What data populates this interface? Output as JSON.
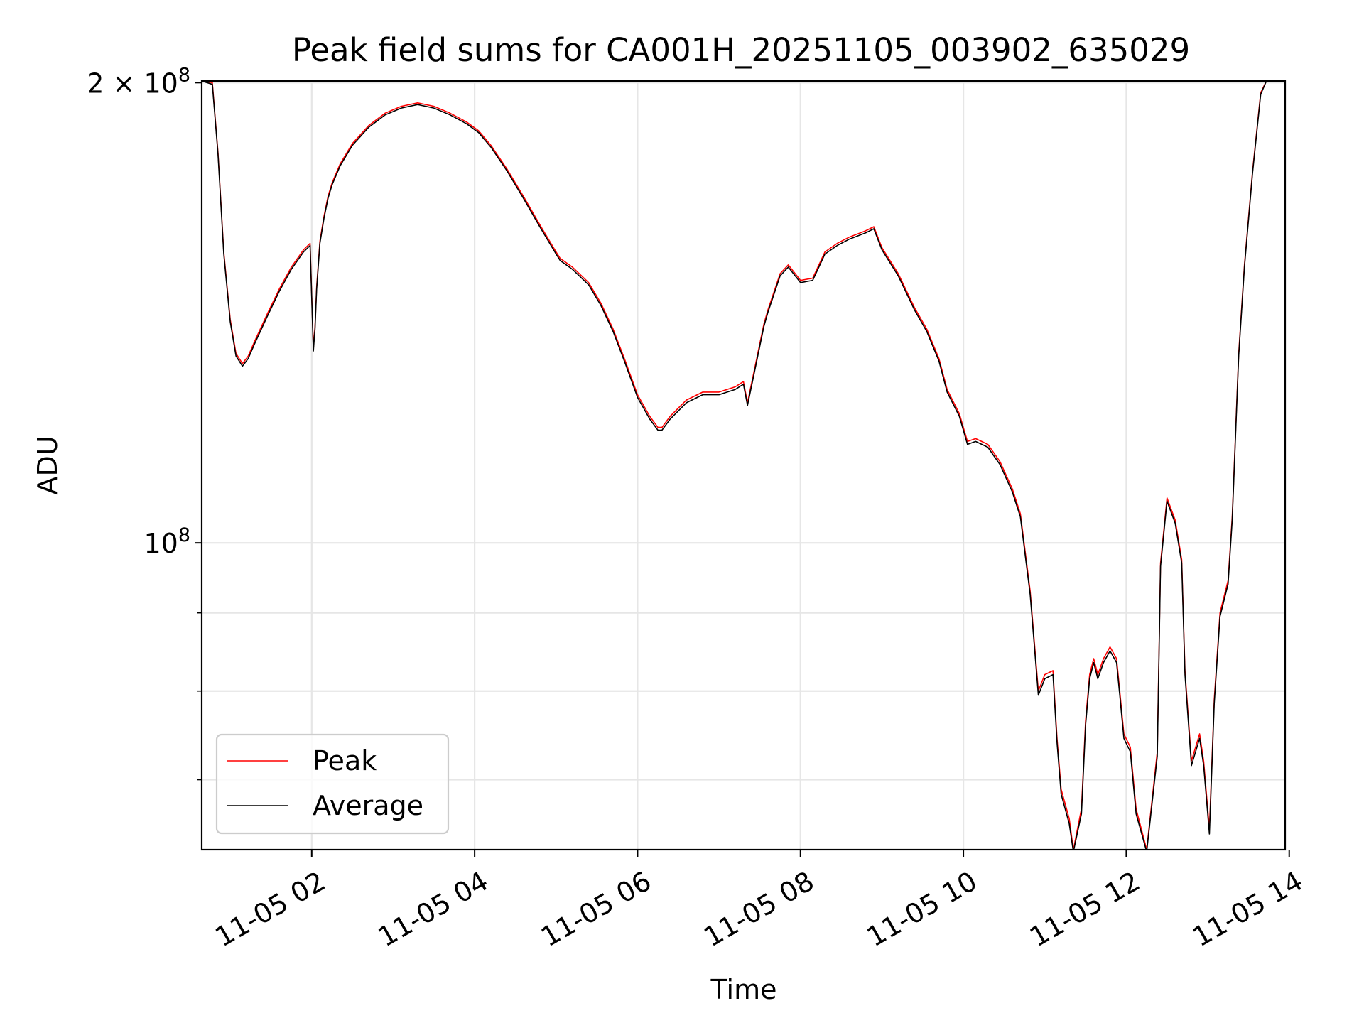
{
  "chart_data": {
    "type": "line",
    "title": "Peak field sums for CA001H_20251105_003902_635029",
    "xlabel": "Time",
    "ylabel": "ADU",
    "yscale": "log",
    "xlim": [
      0.65,
      13.95
    ],
    "ylim": [
      63000000,
      200500000
    ],
    "x_unit": "hours since 2025-11-05 00:00",
    "x_ticks": [
      {
        "value": 2,
        "label": "11-05 02"
      },
      {
        "value": 4,
        "label": "11-05 04"
      },
      {
        "value": 6,
        "label": "11-05 06"
      },
      {
        "value": 8,
        "label": "11-05 08"
      },
      {
        "value": 10,
        "label": "11-05 10"
      },
      {
        "value": 12,
        "label": "11-05 12"
      },
      {
        "value": 14,
        "label": "11-05 14"
      }
    ],
    "y_major_ticks": [
      {
        "value": 100000000,
        "mantissa": "10",
        "exponent": "8"
      },
      {
        "value": 200000000,
        "mantissa": "2 × 10",
        "exponent": "8"
      }
    ],
    "y_minor_ticks": [
      70000000,
      80000000,
      90000000
    ],
    "grid": true,
    "legend_position": "lower-left",
    "series": [
      {
        "name": "Peak",
        "color": "#ff0000",
        "x": [
          0.65,
          0.78,
          0.85,
          0.92,
          1.0,
          1.07,
          1.15,
          1.22,
          1.3,
          1.45,
          1.6,
          1.75,
          1.9,
          1.98,
          2.02,
          2.04,
          2.06,
          2.1,
          2.15,
          2.2,
          2.25,
          2.35,
          2.5,
          2.7,
          2.9,
          3.1,
          3.3,
          3.5,
          3.7,
          3.9,
          4.05,
          4.2,
          4.4,
          4.6,
          4.8,
          5.0,
          5.05,
          5.2,
          5.4,
          5.55,
          5.7,
          5.85,
          6.0,
          6.15,
          6.25,
          6.3,
          6.4,
          6.6,
          6.8,
          7.0,
          7.2,
          7.3,
          7.35,
          7.45,
          7.55,
          7.6,
          7.75,
          7.85,
          8.0,
          8.15,
          8.3,
          8.45,
          8.6,
          8.8,
          8.9,
          9.0,
          9.2,
          9.4,
          9.55,
          9.7,
          9.8,
          9.95,
          10.05,
          10.15,
          10.3,
          10.45,
          10.6,
          10.7,
          10.82,
          10.92,
          11.0,
          11.1,
          11.15,
          11.2,
          11.3,
          11.35,
          11.45,
          11.5,
          11.55,
          11.6,
          11.65,
          11.72,
          11.8,
          11.88,
          11.92,
          11.97,
          12.05,
          12.12,
          12.25,
          12.38,
          12.42,
          12.5,
          12.6,
          12.68,
          12.72,
          12.8,
          12.9,
          12.95,
          13.02,
          13.08,
          13.15,
          13.25,
          13.3,
          13.38,
          13.45,
          13.55,
          13.65,
          13.72,
          13.95
        ],
        "y": [
          200500000,
          200000000,
          180000000,
          155000000,
          140000000,
          133000000,
          131000000,
          132500000,
          135500000,
          141000000,
          146500000,
          151500000,
          155500000,
          157000000,
          134000000,
          138500000,
          147000000,
          157500000,
          163500000,
          168500000,
          172000000,
          177000000,
          182500000,
          187500000,
          191000000,
          193000000,
          194000000,
          193000000,
          191000000,
          188500000,
          186000000,
          182000000,
          175500000,
          168500000,
          161500000,
          155000000,
          153500000,
          151500000,
          148000000,
          143500000,
          138000000,
          131500000,
          125000000,
          121000000,
          119000000,
          119000000,
          121000000,
          124000000,
          125500000,
          125500000,
          126500000,
          127500000,
          123500000,
          131000000,
          139000000,
          142000000,
          150000000,
          152000000,
          148500000,
          149000000,
          155000000,
          157000000,
          158500000,
          160000000,
          161000000,
          156000000,
          150000000,
          142500000,
          138000000,
          132000000,
          126000000,
          121500000,
          116500000,
          117000000,
          116000000,
          113000000,
          108500000,
          104500000,
          93000000,
          80000000,
          82000000,
          82500000,
          74500000,
          69000000,
          66000000,
          63000000,
          67000000,
          76500000,
          82000000,
          84000000,
          82000000,
          84000000,
          85500000,
          84000000,
          80000000,
          75000000,
          73500000,
          67000000,
          63000000,
          73000000,
          97000000,
          107000000,
          103500000,
          97500000,
          82500000,
          72000000,
          75000000,
          72000000,
          65000000,
          79000000,
          90000000,
          94500000,
          104000000,
          133000000,
          152000000,
          175000000,
          197000000,
          200500000,
          200500000
        ]
      },
      {
        "name": "Average",
        "color": "#000000",
        "x": [
          0.65,
          0.78,
          0.85,
          0.92,
          1.0,
          1.07,
          1.15,
          1.22,
          1.3,
          1.45,
          1.6,
          1.75,
          1.9,
          1.98,
          2.02,
          2.04,
          2.06,
          2.1,
          2.15,
          2.2,
          2.25,
          2.35,
          2.5,
          2.7,
          2.9,
          3.1,
          3.3,
          3.5,
          3.7,
          3.9,
          4.05,
          4.2,
          4.4,
          4.6,
          4.8,
          5.0,
          5.05,
          5.2,
          5.4,
          5.55,
          5.7,
          5.85,
          6.0,
          6.15,
          6.25,
          6.3,
          6.4,
          6.6,
          6.8,
          7.0,
          7.2,
          7.3,
          7.35,
          7.45,
          7.55,
          7.6,
          7.75,
          7.85,
          8.0,
          8.15,
          8.3,
          8.45,
          8.6,
          8.8,
          8.9,
          9.0,
          9.2,
          9.4,
          9.55,
          9.7,
          9.8,
          9.95,
          10.05,
          10.15,
          10.3,
          10.45,
          10.6,
          10.7,
          10.82,
          10.92,
          11.0,
          11.1,
          11.15,
          11.2,
          11.3,
          11.35,
          11.45,
          11.5,
          11.55,
          11.6,
          11.65,
          11.72,
          11.8,
          11.88,
          11.92,
          11.97,
          12.05,
          12.12,
          12.25,
          12.38,
          12.42,
          12.5,
          12.6,
          12.68,
          12.72,
          12.8,
          12.9,
          12.95,
          13.02,
          13.08,
          13.15,
          13.25,
          13.3,
          13.38,
          13.45,
          13.55,
          13.65,
          13.72,
          13.95
        ],
        "y": [
          200500000,
          199500000,
          179500000,
          154500000,
          139500000,
          132500000,
          130500000,
          132000000,
          135000000,
          140500000,
          146000000,
          151000000,
          155000000,
          156500000,
          133500000,
          138000000,
          146500000,
          157000000,
          163000000,
          168000000,
          171500000,
          176500000,
          182000000,
          187000000,
          190500000,
          192500000,
          193500000,
          192500000,
          190500000,
          188000000,
          185500000,
          181500000,
          175000000,
          168000000,
          161000000,
          154500000,
          153000000,
          151000000,
          147500000,
          143000000,
          137500000,
          131000000,
          124500000,
          120500000,
          118500000,
          118500000,
          120500000,
          123500000,
          125000000,
          125000000,
          126000000,
          127000000,
          123000000,
          130500000,
          138500000,
          141500000,
          149500000,
          151500000,
          148000000,
          148500000,
          154500000,
          156500000,
          158000000,
          159500000,
          160500000,
          155500000,
          149500000,
          142000000,
          137500000,
          131500000,
          125500000,
          121000000,
          116000000,
          116500000,
          115500000,
          112500000,
          108000000,
          104000000,
          92500000,
          79500000,
          81500000,
          82000000,
          74000000,
          68500000,
          65500000,
          62800000,
          66500000,
          76000000,
          81500000,
          83500000,
          81500000,
          83500000,
          85000000,
          83500000,
          79500000,
          74500000,
          73000000,
          66500000,
          62800000,
          72500000,
          96500000,
          106500000,
          103000000,
          97000000,
          82000000,
          71500000,
          74500000,
          71500000,
          64500000,
          78500000,
          89500000,
          94000000,
          103500000,
          132500000,
          151500000,
          174500000,
          196500000,
          200500000,
          200500000
        ]
      }
    ]
  }
}
